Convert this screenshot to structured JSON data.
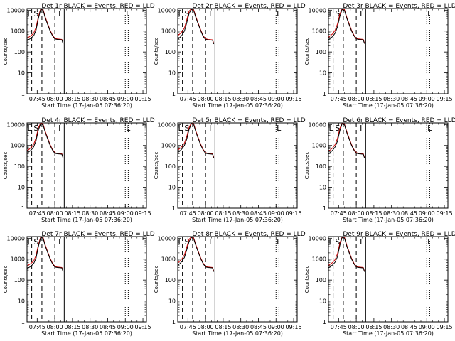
{
  "shared": {
    "ylabel": "Counts/sec",
    "xlabel": "Start Time (17-Jan-05 07:36:20)",
    "xticks": [
      "07:45",
      "08:00",
      "08:15",
      "08:30",
      "08:45",
      "09:00",
      "09:15"
    ],
    "yticks": [
      "1",
      "10",
      "100",
      "1000",
      "10000"
    ],
    "marker_letters": [
      "L",
      "S",
      "I",
      "L"
    ],
    "colors": {
      "events": "#000000",
      "lld": "#cc0000"
    }
  },
  "chart_data": [
    {
      "type": "line",
      "title": "Det 1r BLACK = Events, RED = LLD",
      "xlabel": "Start Time (17-Jan-05 07:36:20)",
      "ylabel": "Counts/sec",
      "xlim": [
        "07:36:20",
        "09:18:00"
      ],
      "ylim": [
        1,
        12000
      ],
      "yscale": "log",
      "series": [
        {
          "name": "Events",
          "color": "#000000",
          "x": [
            "07:36:20",
            "07:38",
            "07:40",
            "07:42",
            "07:44",
            "07:46",
            "07:48",
            "07:50",
            "07:52",
            "07:54",
            "07:56",
            "07:58",
            "08:00",
            "08:02",
            "08:04",
            "08:06",
            "08:07"
          ],
          "values": [
            350,
            400,
            480,
            600,
            1100,
            4000,
            11000,
            10000,
            4000,
            2000,
            1000,
            600,
            420,
            400,
            390,
            380,
            250
          ]
        },
        {
          "name": "LLD",
          "color": "#cc0000",
          "x": [
            "07:36:20",
            "07:38",
            "07:40",
            "07:42",
            "07:44",
            "07:46",
            "07:48",
            "07:50",
            "07:52",
            "07:54",
            "07:56",
            "07:58",
            "08:00",
            "08:02",
            "08:04",
            "08:06",
            "08:07"
          ],
          "values": [
            450,
            520,
            620,
            800,
            1500,
            5000,
            12000,
            11000,
            4500,
            2200,
            1100,
            650,
            450,
            420,
            410,
            400,
            270
          ]
        }
      ]
    },
    {
      "type": "line",
      "title": "Det 2r BLACK = Events, RED = LLD",
      "xlabel": "Start Time (17-Jan-05 07:36:20)",
      "ylabel": "Counts/sec",
      "xlim": [
        "07:36:20",
        "09:18:00"
      ],
      "ylim": [
        1,
        12000
      ],
      "yscale": "log",
      "series": [
        {
          "name": "Events",
          "color": "#000000",
          "x": [
            "07:36:20",
            "07:38",
            "07:40",
            "07:42",
            "07:44",
            "07:46",
            "07:48",
            "07:50",
            "07:52",
            "07:54",
            "07:56",
            "07:58",
            "08:00",
            "08:02",
            "08:04",
            "08:06",
            "08:07"
          ],
          "values": [
            400,
            480,
            650,
            1000,
            2500,
            7000,
            11000,
            9000,
            4000,
            2000,
            1000,
            550,
            400,
            380,
            370,
            360,
            240
          ]
        },
        {
          "name": "LLD",
          "color": "#cc0000",
          "x": [
            "07:36:20",
            "07:38",
            "07:40",
            "07:42",
            "07:44",
            "07:46",
            "07:48",
            "07:50",
            "07:52",
            "07:54",
            "07:56",
            "07:58",
            "08:00",
            "08:02",
            "08:04",
            "08:06",
            "08:07"
          ],
          "values": [
            600,
            720,
            950,
            1400,
            3500,
            9000,
            12000,
            10000,
            4500,
            2200,
            1100,
            600,
            430,
            400,
            390,
            380,
            260
          ]
        }
      ]
    },
    {
      "type": "line",
      "title": "Det 3r BLACK = Events, RED = LLD",
      "xlabel": "Start Time (17-Jan-05 07:36:20)",
      "ylabel": "Counts/sec",
      "xlim": [
        "07:36:20",
        "09:18:00"
      ],
      "ylim": [
        1,
        12000
      ],
      "yscale": "log",
      "series": [
        {
          "name": "Events",
          "color": "#000000",
          "x": [
            "07:36:20",
            "07:38",
            "07:40",
            "07:42",
            "07:44",
            "07:46",
            "07:48",
            "07:50",
            "07:52",
            "07:54",
            "07:56",
            "07:58",
            "08:00",
            "08:02",
            "08:04",
            "08:06",
            "08:07"
          ],
          "values": [
            380,
            450,
            560,
            800,
            1600,
            5000,
            11000,
            9500,
            4000,
            2000,
            1000,
            600,
            420,
            400,
            390,
            380,
            250
          ]
        },
        {
          "name": "LLD",
          "color": "#cc0000",
          "x": [
            "07:36:20",
            "07:38",
            "07:40",
            "07:42",
            "07:44",
            "07:46",
            "07:48",
            "07:50",
            "07:52",
            "07:54",
            "07:56",
            "07:58",
            "08:00",
            "08:02",
            "08:04",
            "08:06",
            "08:07"
          ],
          "values": [
            500,
            600,
            750,
            1100,
            2200,
            6500,
            12000,
            10500,
            4500,
            2200,
            1100,
            650,
            450,
            420,
            410,
            400,
            270
          ]
        }
      ]
    },
    {
      "type": "line",
      "title": "Det 4r BLACK = Events, RED = LLD",
      "xlabel": "Start Time (17-Jan-05 07:36:20)",
      "ylabel": "Counts/sec",
      "xlim": [
        "07:36:20",
        "09:18:00"
      ],
      "ylim": [
        1,
        12000
      ],
      "yscale": "log",
      "series": [
        {
          "name": "Events",
          "color": "#000000",
          "x": [
            "07:36:20",
            "07:38",
            "07:40",
            "07:42",
            "07:44",
            "07:46",
            "07:48",
            "07:50",
            "07:52",
            "07:54",
            "07:56",
            "07:58",
            "08:00",
            "08:02",
            "08:04",
            "08:06",
            "08:07"
          ],
          "values": [
            420,
            500,
            620,
            850,
            1700,
            5500,
            11000,
            9500,
            4000,
            2000,
            1000,
            600,
            420,
            400,
            390,
            380,
            250
          ]
        },
        {
          "name": "LLD",
          "color": "#cc0000",
          "x": [
            "07:36:20",
            "07:38",
            "07:40",
            "07:42",
            "07:44",
            "07:46",
            "07:48",
            "07:50",
            "07:52",
            "07:54",
            "07:56",
            "07:58",
            "08:00",
            "08:02",
            "08:04",
            "08:06",
            "08:07"
          ],
          "values": [
            560,
            650,
            820,
            1150,
            2300,
            7000,
            12000,
            10500,
            4500,
            2200,
            1100,
            650,
            450,
            420,
            410,
            400,
            270
          ]
        }
      ]
    },
    {
      "type": "line",
      "title": "Det 5r BLACK = Events, RED = LLD",
      "xlabel": "Start Time (17-Jan-05 07:36:20)",
      "ylabel": "Counts/sec",
      "xlim": [
        "07:36:20",
        "09:18:00"
      ],
      "ylim": [
        1,
        12000
      ],
      "yscale": "log",
      "series": [
        {
          "name": "Events",
          "color": "#000000",
          "x": [
            "07:36:20",
            "07:38",
            "07:40",
            "07:42",
            "07:44",
            "07:46",
            "07:48",
            "07:50",
            "07:52",
            "07:54",
            "07:56",
            "07:58",
            "08:00",
            "08:02",
            "08:04",
            "08:06",
            "08:07"
          ],
          "values": [
            450,
            530,
            700,
            1000,
            2000,
            6000,
            11000,
            9500,
            4000,
            2000,
            1000,
            600,
            420,
            400,
            390,
            380,
            250
          ]
        },
        {
          "name": "LLD",
          "color": "#cc0000",
          "x": [
            "07:36:20",
            "07:38",
            "07:40",
            "07:42",
            "07:44",
            "07:46",
            "07:48",
            "07:50",
            "07:52",
            "07:54",
            "07:56",
            "07:58",
            "08:00",
            "08:02",
            "08:04",
            "08:06",
            "08:07"
          ],
          "values": [
            600,
            700,
            900,
            1300,
            2700,
            7500,
            12000,
            10500,
            4500,
            2200,
            1100,
            650,
            450,
            420,
            410,
            400,
            270
          ]
        }
      ]
    },
    {
      "type": "line",
      "title": "Det 6r BLACK = Events, RED = LLD",
      "xlabel": "Start Time (17-Jan-05 07:36:20)",
      "ylabel": "Counts/sec",
      "xlim": [
        "07:36:20",
        "09:18:00"
      ],
      "ylim": [
        1,
        12000
      ],
      "yscale": "log",
      "series": [
        {
          "name": "Events",
          "color": "#000000",
          "x": [
            "07:36:20",
            "07:38",
            "07:40",
            "07:42",
            "07:44",
            "07:46",
            "07:48",
            "07:50",
            "07:52",
            "07:54",
            "07:56",
            "07:58",
            "08:00",
            "08:02",
            "08:04",
            "08:06",
            "08:07"
          ],
          "values": [
            400,
            470,
            600,
            850,
            1600,
            5000,
            11000,
            9500,
            4000,
            2000,
            1000,
            600,
            420,
            400,
            390,
            380,
            250
          ]
        },
        {
          "name": "LLD",
          "color": "#cc0000",
          "x": [
            "07:36:20",
            "07:38",
            "07:40",
            "07:42",
            "07:44",
            "07:46",
            "07:48",
            "07:50",
            "07:52",
            "07:54",
            "07:56",
            "07:58",
            "08:00",
            "08:02",
            "08:04",
            "08:06",
            "08:07"
          ],
          "values": [
            530,
            620,
            780,
            1100,
            2200,
            6500,
            12000,
            10500,
            4500,
            2200,
            1100,
            650,
            450,
            420,
            410,
            400,
            270
          ]
        }
      ]
    },
    {
      "type": "line",
      "title": "Det 7r BLACK = Events, RED = LLD",
      "xlabel": "Start Time (17-Jan-05 07:36:20)",
      "ylabel": "Counts/sec",
      "xlim": [
        "07:36:20",
        "09:18:00"
      ],
      "ylim": [
        1,
        12000
      ],
      "yscale": "log",
      "series": [
        {
          "name": "Events",
          "color": "#000000",
          "x": [
            "07:36:20",
            "07:38",
            "07:40",
            "07:42",
            "07:44",
            "07:46",
            "07:48",
            "07:50",
            "07:52",
            "07:54",
            "07:56",
            "07:58",
            "08:00",
            "08:02",
            "08:04",
            "08:06",
            "08:07"
          ],
          "values": [
            350,
            400,
            480,
            620,
            1100,
            4000,
            11000,
            10000,
            4000,
            2000,
            1000,
            600,
            420,
            400,
            390,
            380,
            250
          ]
        },
        {
          "name": "LLD",
          "color": "#cc0000",
          "x": [
            "07:36:20",
            "07:38",
            "07:40",
            "07:42",
            "07:44",
            "07:46",
            "07:48",
            "07:50",
            "07:52",
            "07:54",
            "07:56",
            "07:58",
            "08:00",
            "08:02",
            "08:04",
            "08:06",
            "08:07"
          ],
          "values": [
            470,
            540,
            640,
            820,
            1500,
            5000,
            12000,
            11000,
            4500,
            2200,
            1100,
            650,
            450,
            420,
            410,
            400,
            270
          ]
        }
      ]
    },
    {
      "type": "line",
      "title": "Det 8r BLACK = Events, RED = LLD",
      "xlabel": "Start Time (17-Jan-05 07:36:20)",
      "ylabel": "Counts/sec",
      "xlim": [
        "07:36:20",
        "09:18:00"
      ],
      "ylim": [
        1,
        12000
      ],
      "yscale": "log",
      "series": [
        {
          "name": "Events",
          "color": "#000000",
          "x": [
            "07:36:20",
            "07:38",
            "07:40",
            "07:42",
            "07:44",
            "07:46",
            "07:48",
            "07:50",
            "07:52",
            "07:54",
            "07:56",
            "07:58",
            "08:00",
            "08:02",
            "08:04",
            "08:06",
            "08:07"
          ],
          "values": [
            500,
            600,
            800,
            1200,
            2800,
            7000,
            11000,
            9000,
            4000,
            2000,
            1000,
            600,
            420,
            400,
            390,
            380,
            250
          ]
        },
        {
          "name": "LLD",
          "color": "#cc0000",
          "x": [
            "07:36:20",
            "07:38",
            "07:40",
            "07:42",
            "07:44",
            "07:46",
            "07:48",
            "07:50",
            "07:52",
            "07:54",
            "07:56",
            "07:58",
            "08:00",
            "08:02",
            "08:04",
            "08:06",
            "08:07"
          ],
          "values": [
            650,
            800,
            1050,
            1600,
            3800,
            9000,
            12000,
            10000,
            4500,
            2200,
            1100,
            650,
            450,
            420,
            410,
            400,
            270
          ]
        }
      ]
    },
    {
      "type": "line",
      "title": "Det 9r BLACK = Events, RED = LLD",
      "xlabel": "Start Time (17-Jan-05 07:36:20)",
      "ylabel": "Counts/sec",
      "xlim": [
        "07:36:20",
        "09:18:00"
      ],
      "ylim": [
        1,
        12000
      ],
      "yscale": "log",
      "series": [
        {
          "name": "Events",
          "color": "#000000",
          "x": [
            "07:36:20",
            "07:38",
            "07:40",
            "07:42",
            "07:44",
            "07:46",
            "07:48",
            "07:50",
            "07:52",
            "07:54",
            "07:56",
            "07:58",
            "08:00",
            "08:02",
            "08:04",
            "08:06",
            "08:07"
          ],
          "values": [
            380,
            440,
            540,
            720,
            1300,
            4500,
            11000,
            10000,
            4000,
            2000,
            1000,
            600,
            420,
            400,
            390,
            380,
            250
          ]
        },
        {
          "name": "LLD",
          "color": "#cc0000",
          "x": [
            "07:36:20",
            "07:38",
            "07:40",
            "07:42",
            "07:44",
            "07:46",
            "07:48",
            "07:50",
            "07:52",
            "07:54",
            "07:56",
            "07:58",
            "08:00",
            "08:02",
            "08:04",
            "08:06",
            "08:07"
          ],
          "values": [
            500,
            580,
            700,
            950,
            1800,
            5800,
            12000,
            11000,
            4500,
            2200,
            1100,
            650,
            450,
            420,
            410,
            400,
            270
          ]
        }
      ]
    }
  ],
  "markers": {
    "dashed_times": [
      "07:40:20",
      "07:49:00",
      "08:00:00"
    ],
    "solid_times": [
      "08:08:00"
    ],
    "dotted_times": [
      "09:00:00",
      "09:02:30"
    ],
    "letters": [
      {
        "text": "L",
        "time": "07:36:40"
      },
      {
        "text": "S",
        "time": "07:42:00"
      },
      {
        "text": "I",
        "time": "08:03:00"
      },
      {
        "text": "L",
        "time": "09:00:30"
      }
    ]
  }
}
